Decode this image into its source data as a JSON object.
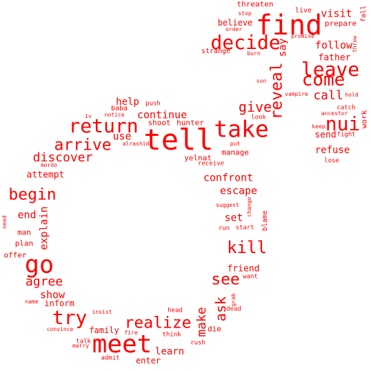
{
  "color": "#ff0000",
  "words": [
    {
      "text": "tell",
      "weight": 1.0
    },
    {
      "text": "find",
      "weight": 0.95
    },
    {
      "text": "meet",
      "weight": 0.9
    },
    {
      "text": "take",
      "weight": 0.85
    },
    {
      "text": "go",
      "weight": 0.85
    },
    {
      "text": "return",
      "weight": 0.75
    },
    {
      "text": "leave",
      "weight": 0.7
    },
    {
      "text": "nui",
      "weight": 0.7
    },
    {
      "text": "decide",
      "weight": 0.7
    },
    {
      "text": "come",
      "weight": 0.7
    },
    {
      "text": "try",
      "weight": 0.7
    },
    {
      "text": "realize",
      "weight": 0.6
    },
    {
      "text": "arrive",
      "weight": 0.6
    },
    {
      "text": "reveal",
      "weight": 0.6
    },
    {
      "text": "kill",
      "weight": 0.6
    },
    {
      "text": "begin",
      "weight": 0.55
    },
    {
      "text": "see",
      "weight": 0.55
    },
    {
      "text": "ask",
      "weight": 0.5
    },
    {
      "text": "give",
      "weight": 0.5
    },
    {
      "text": "discover",
      "weight": 0.45
    },
    {
      "text": "agree",
      "weight": 0.45
    },
    {
      "text": "make",
      "weight": 0.45
    },
    {
      "text": "call",
      "weight": 0.45
    },
    {
      "text": "continue",
      "weight": 0.42
    },
    {
      "text": "visit",
      "weight": 0.42
    },
    {
      "text": "say",
      "weight": 0.42
    },
    {
      "text": "show",
      "weight": 0.42
    },
    {
      "text": "escape",
      "weight": 0.42
    },
    {
      "text": "confront",
      "weight": 0.42
    },
    {
      "text": "explain",
      "weight": 0.4
    },
    {
      "text": "set",
      "weight": 0.4
    },
    {
      "text": "follow",
      "weight": 0.4
    },
    {
      "text": "use",
      "weight": 0.4
    },
    {
      "text": "refuse",
      "weight": 0.38
    },
    {
      "text": "end",
      "weight": 0.38
    },
    {
      "text": "learn",
      "weight": 0.38
    },
    {
      "text": "help",
      "weight": 0.36
    },
    {
      "text": "send",
      "weight": 0.35
    },
    {
      "text": "father",
      "weight": 0.35
    },
    {
      "text": "attempt",
      "weight": 0.35
    },
    {
      "text": "friend",
      "weight": 0.35
    },
    {
      "text": "believe",
      "weight": 0.33
    },
    {
      "text": "enter",
      "weight": 0.33
    },
    {
      "text": "family",
      "weight": 0.32
    },
    {
      "text": "inform",
      "weight": 0.32
    },
    {
      "text": "manage",
      "weight": 0.3
    },
    {
      "text": "yelnat",
      "weight": 0.3
    },
    {
      "text": "shoot",
      "weight": 0.3
    },
    {
      "text": "hunter",
      "weight": 0.3
    },
    {
      "text": "prepare",
      "weight": 0.3
    },
    {
      "text": "threaten",
      "weight": 0.3
    },
    {
      "text": "work",
      "weight": 0.3
    },
    {
      "text": "plan",
      "weight": 0.3
    },
    {
      "text": "man",
      "weight": 0.3
    },
    {
      "text": "offer",
      "weight": 0.3
    },
    {
      "text": "die",
      "weight": 0.3
    },
    {
      "text": "live",
      "weight": 0.28
    },
    {
      "text": "fall",
      "weight": 0.28
    },
    {
      "text": "blame",
      "weight": 0.28
    },
    {
      "text": "strange",
      "weight": 0.28
    },
    {
      "text": "baba",
      "weight": 0.28
    },
    {
      "text": "push",
      "weight": 0.27
    },
    {
      "text": "admit",
      "weight": 0.27
    },
    {
      "text": "talk",
      "weight": 0.27
    },
    {
      "text": "head",
      "weight": 0.27
    },
    {
      "text": "think",
      "weight": 0.27
    },
    {
      "text": "rush",
      "weight": 0.27
    },
    {
      "text": "start",
      "weight": 0.27
    },
    {
      "text": "run",
      "weight": 0.27
    },
    {
      "text": "want",
      "weight": 0.27
    },
    {
      "text": "look",
      "weight": 0.27
    },
    {
      "text": "receive",
      "weight": 0.27
    },
    {
      "text": "lose",
      "weight": 0.27
    },
    {
      "text": "catch",
      "weight": 0.27
    },
    {
      "text": "fight",
      "weight": 0.27
    },
    {
      "text": "order",
      "weight": 0.25
    },
    {
      "text": "stop",
      "weight": 0.25
    },
    {
      "text": "burn",
      "weight": 0.25
    },
    {
      "text": "promise",
      "weight": 0.25
    },
    {
      "text": "throw",
      "weight": 0.25
    },
    {
      "text": "son",
      "weight": 0.25
    },
    {
      "text": "vampire",
      "weight": 0.25
    },
    {
      "text": "hold",
      "weight": 0.25
    },
    {
      "text": "ancestor",
      "weight": 0.25
    },
    {
      "text": "keep",
      "weight": 0.25
    },
    {
      "text": "put",
      "weight": 0.25
    },
    {
      "text": "iv",
      "weight": 0.25
    },
    {
      "text": "notice",
      "weight": 0.25
    },
    {
      "text": "alrashid",
      "weight": 0.25
    },
    {
      "text": "mordo",
      "weight": 0.25
    },
    {
      "text": "suggest",
      "weight": 0.25
    },
    {
      "text": "change",
      "weight": 0.25
    },
    {
      "text": "need",
      "weight": 0.25
    },
    {
      "text": "name",
      "weight": 0.25
    },
    {
      "text": "insist",
      "weight": 0.25
    },
    {
      "text": "convince",
      "weight": 0.25
    },
    {
      "text": "fire",
      "weight": 0.25
    },
    {
      "text": "marry",
      "weight": 0.25
    },
    {
      "text": "grab",
      "weight": 0.25
    },
    {
      "text": "dead",
      "weight": 0.25
    }
  ]
}
